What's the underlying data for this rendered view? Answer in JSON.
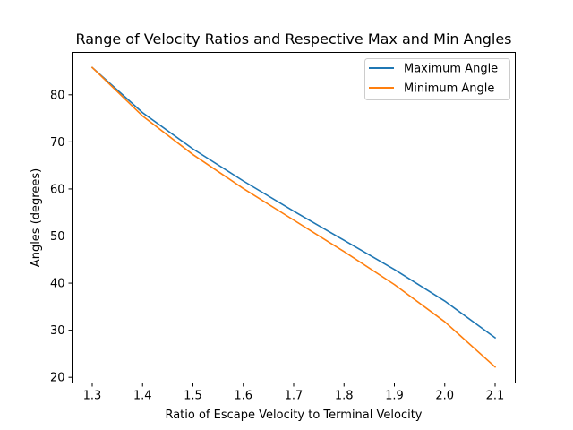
{
  "chart_data": {
    "type": "line",
    "title": "Range of Velocity Ratios and Respective Max and Min Angles",
    "xlabel": "Ratio of Escape Velocity to Terminal Velocity",
    "ylabel": "Angles (degrees)",
    "xlim": [
      1.26,
      2.14
    ],
    "ylim": [
      18.8,
      89.0
    ],
    "xticks": [
      "1.3",
      "1.4",
      "1.5",
      "1.6",
      "1.7",
      "1.8",
      "1.9",
      "2.0",
      "2.1"
    ],
    "yticks": [
      "20",
      "30",
      "40",
      "50",
      "60",
      "70",
      "80"
    ],
    "x": [
      1.3,
      1.4,
      1.5,
      1.6,
      1.7,
      1.8,
      1.9,
      2.0,
      2.1
    ],
    "series": [
      {
        "name": "Maximum Angle",
        "color": "#1f77b4",
        "values": [
          85.8,
          76.2,
          68.5,
          61.7,
          55.3,
          49.1,
          42.9,
          36.2,
          28.4
        ]
      },
      {
        "name": "Minimum Angle",
        "color": "#ff7f0e",
        "values": [
          85.8,
          75.5,
          67.3,
          60.1,
          53.4,
          46.7,
          39.7,
          31.8,
          22.2
        ]
      }
    ],
    "grid": false,
    "legend_position": "top-right"
  }
}
